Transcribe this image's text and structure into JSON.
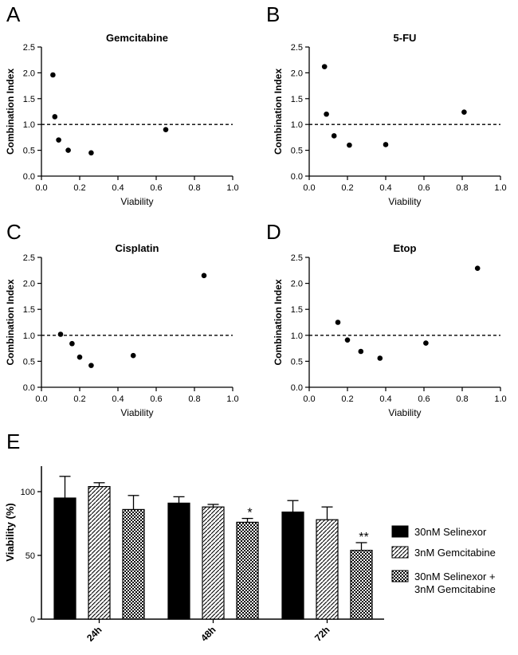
{
  "chart_data": [
    {
      "type": "scatter",
      "panel": "A",
      "title": "Gemcitabine",
      "xlabel": "Viability",
      "ylabel": "Combination Index",
      "xlim": [
        0,
        1.0
      ],
      "ylim": [
        0,
        2.5
      ],
      "xticks": [
        "0.0",
        "0.2",
        "0.4",
        "0.6",
        "0.8",
        "1.0"
      ],
      "yticks": [
        "0.0",
        "0.5",
        "1.0",
        "1.5",
        "2.0",
        "2.5"
      ],
      "reference_line": 1.0,
      "points": [
        {
          "x": 0.06,
          "y": 1.96
        },
        {
          "x": 0.07,
          "y": 1.15
        },
        {
          "x": 0.09,
          "y": 0.7
        },
        {
          "x": 0.14,
          "y": 0.5
        },
        {
          "x": 0.26,
          "y": 0.45
        },
        {
          "x": 0.65,
          "y": 0.9
        }
      ]
    },
    {
      "type": "scatter",
      "panel": "B",
      "title": "5-FU",
      "xlabel": "Viability",
      "ylabel": "Combination Index",
      "xlim": [
        0,
        1.0
      ],
      "ylim": [
        0,
        2.5
      ],
      "xticks": [
        "0.0",
        "0.2",
        "0.4",
        "0.6",
        "0.8",
        "1.0"
      ],
      "yticks": [
        "0.0",
        "0.5",
        "1.0",
        "1.5",
        "2.0",
        "2.5"
      ],
      "reference_line": 1.0,
      "points": [
        {
          "x": 0.08,
          "y": 2.12
        },
        {
          "x": 0.09,
          "y": 1.2
        },
        {
          "x": 0.13,
          "y": 0.78
        },
        {
          "x": 0.21,
          "y": 0.6
        },
        {
          "x": 0.4,
          "y": 0.61
        },
        {
          "x": 0.81,
          "y": 1.24
        }
      ]
    },
    {
      "type": "scatter",
      "panel": "C",
      "title": "Cisplatin",
      "xlabel": "Viability",
      "ylabel": "Combination Index",
      "xlim": [
        0,
        1.0
      ],
      "ylim": [
        0,
        2.5
      ],
      "xticks": [
        "0.0",
        "0.2",
        "0.4",
        "0.6",
        "0.8",
        "1.0"
      ],
      "yticks": [
        "0.0",
        "0.5",
        "1.0",
        "1.5",
        "2.0",
        "2.5"
      ],
      "reference_line": 1.0,
      "points": [
        {
          "x": 0.1,
          "y": 1.02
        },
        {
          "x": 0.16,
          "y": 0.84
        },
        {
          "x": 0.2,
          "y": 0.58
        },
        {
          "x": 0.26,
          "y": 0.42
        },
        {
          "x": 0.48,
          "y": 0.61
        },
        {
          "x": 0.85,
          "y": 2.15
        }
      ]
    },
    {
      "type": "scatter",
      "panel": "D",
      "title": "Etop",
      "xlabel": "Viability",
      "ylabel": "Combination Index",
      "xlim": [
        0,
        1.0
      ],
      "ylim": [
        0,
        2.5
      ],
      "xticks": [
        "0.0",
        "0.2",
        "0.4",
        "0.6",
        "0.8",
        "1.0"
      ],
      "yticks": [
        "0.0",
        "0.5",
        "1.0",
        "1.5",
        "2.0",
        "2.5"
      ],
      "reference_line": 1.0,
      "points": [
        {
          "x": 0.15,
          "y": 1.25
        },
        {
          "x": 0.2,
          "y": 0.91
        },
        {
          "x": 0.27,
          "y": 0.69
        },
        {
          "x": 0.37,
          "y": 0.56
        },
        {
          "x": 0.61,
          "y": 0.85
        },
        {
          "x": 0.88,
          "y": 2.29
        }
      ]
    },
    {
      "type": "bar",
      "panel": "E",
      "ylabel": "Viability (%)",
      "ylim": [
        0,
        120
      ],
      "yticks": [
        "0",
        "50",
        "100"
      ],
      "categories": [
        "24h",
        "48h",
        "72h"
      ],
      "series": [
        {
          "name": "30nM Selinexor",
          "pattern": "solid",
          "values": [
            95,
            91,
            84
          ],
          "errors": [
            17,
            5,
            9
          ]
        },
        {
          "name": "3nM Gemcitabine",
          "pattern": "hatch",
          "values": [
            104,
            88,
            78
          ],
          "errors": [
            3,
            2,
            10
          ]
        },
        {
          "name": "30nM Selinexor + 3nM Gemcitabine",
          "legend_lines": [
            "30nM Selinexor +",
            "3nM Gemcitabine"
          ],
          "pattern": "checker",
          "values": [
            86,
            76,
            54
          ],
          "errors": [
            11,
            3,
            6
          ]
        }
      ],
      "significance": [
        {
          "category": "48h",
          "series": 2,
          "label": "*"
        },
        {
          "category": "72h",
          "series": 2,
          "label": "**"
        }
      ]
    }
  ],
  "colors": {
    "marker": "#000000",
    "bar": "#000000",
    "background": "#ffffff"
  }
}
